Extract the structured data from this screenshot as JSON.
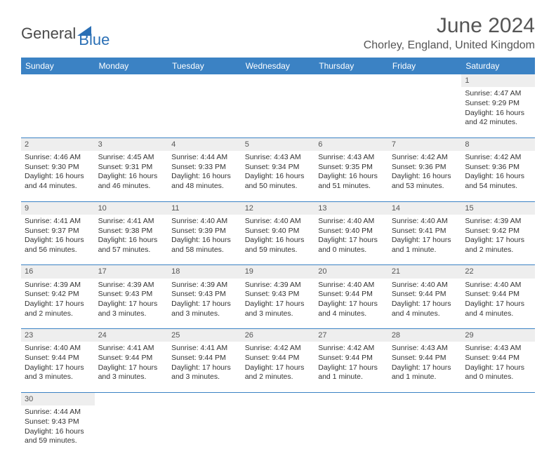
{
  "logo": {
    "part1": "General",
    "part2": "Blue",
    "triangle_color": "#2a6fb5"
  },
  "title": "June 2024",
  "location": "Chorley, England, United Kingdom",
  "header_bg": "#3b82c4",
  "grid_line": "#3b82c4",
  "daynum_bg": "#eeeeee",
  "weekdays": [
    "Sunday",
    "Monday",
    "Tuesday",
    "Wednesday",
    "Thursday",
    "Friday",
    "Saturday"
  ],
  "weeks": [
    {
      "nums": [
        "",
        "",
        "",
        "",
        "",
        "",
        "1"
      ],
      "cells": [
        null,
        null,
        null,
        null,
        null,
        null,
        {
          "sunrise": "Sunrise: 4:47 AM",
          "sunset": "Sunset: 9:29 PM",
          "day1": "Daylight: 16 hours",
          "day2": "and 42 minutes."
        }
      ]
    },
    {
      "nums": [
        "2",
        "3",
        "4",
        "5",
        "6",
        "7",
        "8"
      ],
      "cells": [
        {
          "sunrise": "Sunrise: 4:46 AM",
          "sunset": "Sunset: 9:30 PM",
          "day1": "Daylight: 16 hours",
          "day2": "and 44 minutes."
        },
        {
          "sunrise": "Sunrise: 4:45 AM",
          "sunset": "Sunset: 9:31 PM",
          "day1": "Daylight: 16 hours",
          "day2": "and 46 minutes."
        },
        {
          "sunrise": "Sunrise: 4:44 AM",
          "sunset": "Sunset: 9:33 PM",
          "day1": "Daylight: 16 hours",
          "day2": "and 48 minutes."
        },
        {
          "sunrise": "Sunrise: 4:43 AM",
          "sunset": "Sunset: 9:34 PM",
          "day1": "Daylight: 16 hours",
          "day2": "and 50 minutes."
        },
        {
          "sunrise": "Sunrise: 4:43 AM",
          "sunset": "Sunset: 9:35 PM",
          "day1": "Daylight: 16 hours",
          "day2": "and 51 minutes."
        },
        {
          "sunrise": "Sunrise: 4:42 AM",
          "sunset": "Sunset: 9:36 PM",
          "day1": "Daylight: 16 hours",
          "day2": "and 53 minutes."
        },
        {
          "sunrise": "Sunrise: 4:42 AM",
          "sunset": "Sunset: 9:36 PM",
          "day1": "Daylight: 16 hours",
          "day2": "and 54 minutes."
        }
      ]
    },
    {
      "nums": [
        "9",
        "10",
        "11",
        "12",
        "13",
        "14",
        "15"
      ],
      "cells": [
        {
          "sunrise": "Sunrise: 4:41 AM",
          "sunset": "Sunset: 9:37 PM",
          "day1": "Daylight: 16 hours",
          "day2": "and 56 minutes."
        },
        {
          "sunrise": "Sunrise: 4:41 AM",
          "sunset": "Sunset: 9:38 PM",
          "day1": "Daylight: 16 hours",
          "day2": "and 57 minutes."
        },
        {
          "sunrise": "Sunrise: 4:40 AM",
          "sunset": "Sunset: 9:39 PM",
          "day1": "Daylight: 16 hours",
          "day2": "and 58 minutes."
        },
        {
          "sunrise": "Sunrise: 4:40 AM",
          "sunset": "Sunset: 9:40 PM",
          "day1": "Daylight: 16 hours",
          "day2": "and 59 minutes."
        },
        {
          "sunrise": "Sunrise: 4:40 AM",
          "sunset": "Sunset: 9:40 PM",
          "day1": "Daylight: 17 hours",
          "day2": "and 0 minutes."
        },
        {
          "sunrise": "Sunrise: 4:40 AM",
          "sunset": "Sunset: 9:41 PM",
          "day1": "Daylight: 17 hours",
          "day2": "and 1 minute."
        },
        {
          "sunrise": "Sunrise: 4:39 AM",
          "sunset": "Sunset: 9:42 PM",
          "day1": "Daylight: 17 hours",
          "day2": "and 2 minutes."
        }
      ]
    },
    {
      "nums": [
        "16",
        "17",
        "18",
        "19",
        "20",
        "21",
        "22"
      ],
      "cells": [
        {
          "sunrise": "Sunrise: 4:39 AM",
          "sunset": "Sunset: 9:42 PM",
          "day1": "Daylight: 17 hours",
          "day2": "and 2 minutes."
        },
        {
          "sunrise": "Sunrise: 4:39 AM",
          "sunset": "Sunset: 9:43 PM",
          "day1": "Daylight: 17 hours",
          "day2": "and 3 minutes."
        },
        {
          "sunrise": "Sunrise: 4:39 AM",
          "sunset": "Sunset: 9:43 PM",
          "day1": "Daylight: 17 hours",
          "day2": "and 3 minutes."
        },
        {
          "sunrise": "Sunrise: 4:39 AM",
          "sunset": "Sunset: 9:43 PM",
          "day1": "Daylight: 17 hours",
          "day2": "and 3 minutes."
        },
        {
          "sunrise": "Sunrise: 4:40 AM",
          "sunset": "Sunset: 9:44 PM",
          "day1": "Daylight: 17 hours",
          "day2": "and 4 minutes."
        },
        {
          "sunrise": "Sunrise: 4:40 AM",
          "sunset": "Sunset: 9:44 PM",
          "day1": "Daylight: 17 hours",
          "day2": "and 4 minutes."
        },
        {
          "sunrise": "Sunrise: 4:40 AM",
          "sunset": "Sunset: 9:44 PM",
          "day1": "Daylight: 17 hours",
          "day2": "and 4 minutes."
        }
      ]
    },
    {
      "nums": [
        "23",
        "24",
        "25",
        "26",
        "27",
        "28",
        "29"
      ],
      "cells": [
        {
          "sunrise": "Sunrise: 4:40 AM",
          "sunset": "Sunset: 9:44 PM",
          "day1": "Daylight: 17 hours",
          "day2": "and 3 minutes."
        },
        {
          "sunrise": "Sunrise: 4:41 AM",
          "sunset": "Sunset: 9:44 PM",
          "day1": "Daylight: 17 hours",
          "day2": "and 3 minutes."
        },
        {
          "sunrise": "Sunrise: 4:41 AM",
          "sunset": "Sunset: 9:44 PM",
          "day1": "Daylight: 17 hours",
          "day2": "and 3 minutes."
        },
        {
          "sunrise": "Sunrise: 4:42 AM",
          "sunset": "Sunset: 9:44 PM",
          "day1": "Daylight: 17 hours",
          "day2": "and 2 minutes."
        },
        {
          "sunrise": "Sunrise: 4:42 AM",
          "sunset": "Sunset: 9:44 PM",
          "day1": "Daylight: 17 hours",
          "day2": "and 1 minute."
        },
        {
          "sunrise": "Sunrise: 4:43 AM",
          "sunset": "Sunset: 9:44 PM",
          "day1": "Daylight: 17 hours",
          "day2": "and 1 minute."
        },
        {
          "sunrise": "Sunrise: 4:43 AM",
          "sunset": "Sunset: 9:44 PM",
          "day1": "Daylight: 17 hours",
          "day2": "and 0 minutes."
        }
      ]
    },
    {
      "nums": [
        "30",
        "",
        "",
        "",
        "",
        "",
        ""
      ],
      "cells": [
        {
          "sunrise": "Sunrise: 4:44 AM",
          "sunset": "Sunset: 9:43 PM",
          "day1": "Daylight: 16 hours",
          "day2": "and 59 minutes."
        },
        null,
        null,
        null,
        null,
        null,
        null
      ]
    }
  ]
}
